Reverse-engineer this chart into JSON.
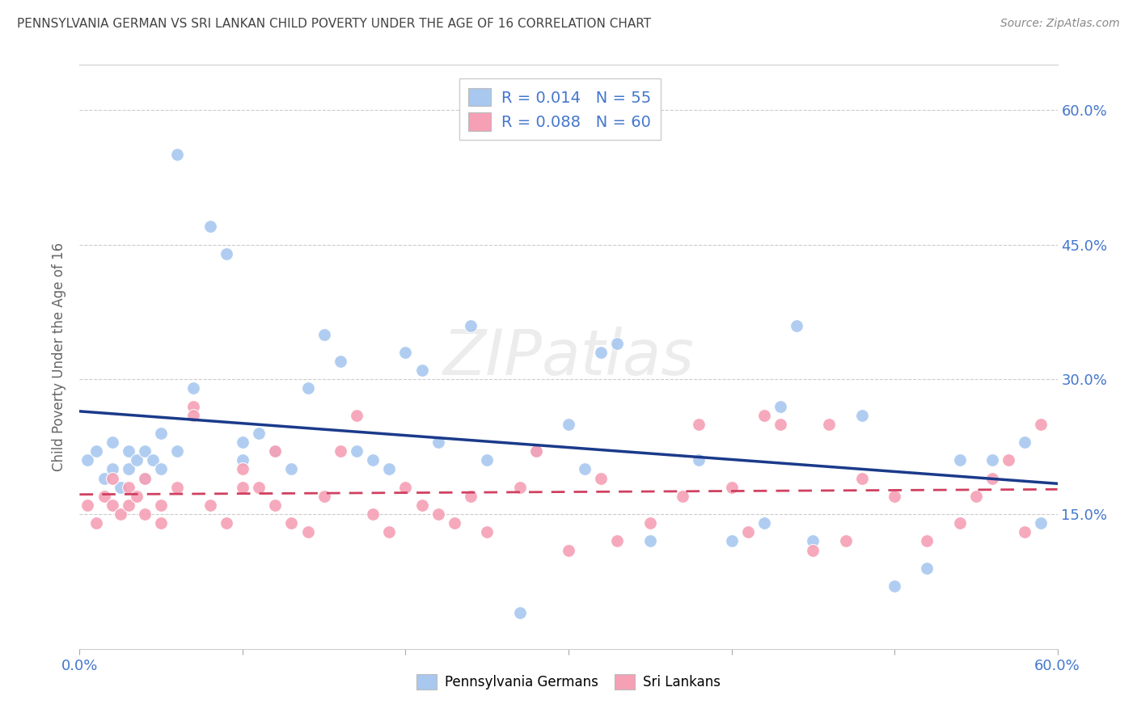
{
  "title": "PENNSYLVANIA GERMAN VS SRI LANKAN CHILD POVERTY UNDER THE AGE OF 16 CORRELATION CHART",
  "source": "Source: ZipAtlas.com",
  "ylabel": "Child Poverty Under the Age of 16",
  "legend_label1": "Pennsylvania Germans",
  "legend_label2": "Sri Lankans",
  "R1": "0.014",
  "N1": "55",
  "R2": "0.088",
  "N2": "60",
  "color1": "#a8c8f0",
  "color2": "#f5a0b5",
  "line_color1": "#1a3a8a",
  "line_color2": "#d04060",
  "title_color": "#444444",
  "source_color": "#888888",
  "tick_color": "#4477cc",
  "watermark": "ZIPatlas",
  "xlim": [
    0.0,
    0.6
  ],
  "ylim": [
    0.0,
    0.65
  ],
  "scatter1_x": [
    0.005,
    0.01,
    0.015,
    0.02,
    0.02,
    0.025,
    0.03,
    0.03,
    0.035,
    0.04,
    0.04,
    0.045,
    0.05,
    0.05,
    0.06,
    0.06,
    0.07,
    0.08,
    0.09,
    0.1,
    0.1,
    0.11,
    0.12,
    0.13,
    0.14,
    0.15,
    0.16,
    0.17,
    0.18,
    0.19,
    0.2,
    0.21,
    0.22,
    0.24,
    0.25,
    0.27,
    0.28,
    0.3,
    0.31,
    0.32,
    0.33,
    0.35,
    0.38,
    0.4,
    0.42,
    0.43,
    0.44,
    0.45,
    0.48,
    0.5,
    0.52,
    0.54,
    0.56,
    0.58,
    0.59
  ],
  "scatter1_y": [
    0.21,
    0.22,
    0.19,
    0.2,
    0.23,
    0.18,
    0.22,
    0.2,
    0.21,
    0.19,
    0.22,
    0.21,
    0.2,
    0.24,
    0.22,
    0.55,
    0.29,
    0.47,
    0.44,
    0.21,
    0.23,
    0.24,
    0.22,
    0.2,
    0.29,
    0.35,
    0.32,
    0.22,
    0.21,
    0.2,
    0.33,
    0.31,
    0.23,
    0.36,
    0.21,
    0.04,
    0.22,
    0.25,
    0.2,
    0.33,
    0.34,
    0.12,
    0.21,
    0.12,
    0.14,
    0.27,
    0.36,
    0.12,
    0.26,
    0.07,
    0.09,
    0.21,
    0.21,
    0.23,
    0.14
  ],
  "scatter2_x": [
    0.005,
    0.01,
    0.015,
    0.02,
    0.02,
    0.025,
    0.03,
    0.03,
    0.035,
    0.04,
    0.04,
    0.05,
    0.05,
    0.06,
    0.07,
    0.07,
    0.08,
    0.09,
    0.1,
    0.1,
    0.11,
    0.12,
    0.12,
    0.13,
    0.14,
    0.15,
    0.16,
    0.17,
    0.18,
    0.19,
    0.2,
    0.21,
    0.22,
    0.23,
    0.24,
    0.25,
    0.27,
    0.28,
    0.3,
    0.32,
    0.33,
    0.35,
    0.37,
    0.38,
    0.4,
    0.41,
    0.42,
    0.43,
    0.45,
    0.46,
    0.47,
    0.48,
    0.5,
    0.52,
    0.54,
    0.55,
    0.56,
    0.57,
    0.58,
    0.59
  ],
  "scatter2_y": [
    0.16,
    0.14,
    0.17,
    0.16,
    0.19,
    0.15,
    0.18,
    0.16,
    0.17,
    0.15,
    0.19,
    0.16,
    0.14,
    0.18,
    0.27,
    0.26,
    0.16,
    0.14,
    0.2,
    0.18,
    0.18,
    0.16,
    0.22,
    0.14,
    0.13,
    0.17,
    0.22,
    0.26,
    0.15,
    0.13,
    0.18,
    0.16,
    0.15,
    0.14,
    0.17,
    0.13,
    0.18,
    0.22,
    0.11,
    0.19,
    0.12,
    0.14,
    0.17,
    0.25,
    0.18,
    0.13,
    0.26,
    0.25,
    0.11,
    0.25,
    0.12,
    0.19,
    0.17,
    0.12,
    0.14,
    0.17,
    0.19,
    0.21,
    0.13,
    0.25
  ]
}
